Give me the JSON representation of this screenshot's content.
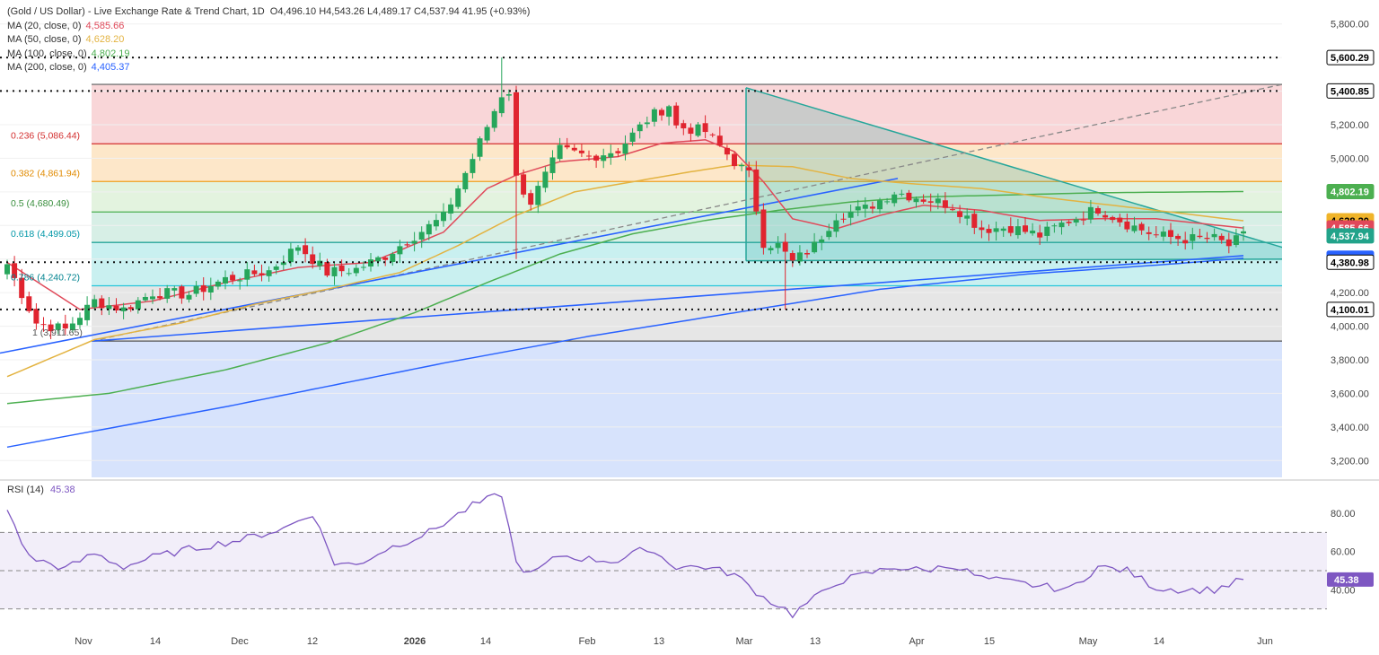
{
  "header": {
    "title": "(Gold / US Dollar) - Live Exchange Rate & Trend Chart, 1D",
    "ohlc": "O4,496.10 H4,543.26 L4,489.17 C4,537.94 41.95 (+0.93%)"
  },
  "ma_legend": [
    {
      "label": "MA (20, close, 0)",
      "value": "4,585.66",
      "color": "#e04a5a"
    },
    {
      "label": "MA (50, close, 0)",
      "value": "4,628.20",
      "color": "#e3b341"
    },
    {
      "label": "MA (100, close, 0)",
      "value": "4,802.19",
      "color": "#4caf50"
    },
    {
      "label": "MA (200, close, 0)",
      "value": "4,405.37",
      "color": "#2962ff"
    }
  ],
  "fib_labels": [
    {
      "text": "0.236 (5,086.44)",
      "price": 5086.44,
      "color": "#d32f2f"
    },
    {
      "text": "0.382 (4,861.94)",
      "price": 4861.94,
      "color": "#e08a00"
    },
    {
      "text": "0.5 (4,680.49)",
      "price": 4680.49,
      "color": "#388e3c"
    },
    {
      "text": "0.618 (4,499.05)",
      "price": 4499.05,
      "color": "#0097a7"
    },
    {
      "text": "0.786 (4,240.72)",
      "price": 4240.72,
      "color": "#00838f"
    },
    {
      "text": "1 (3,911.65)",
      "price": 3911.65,
      "color": "#555555"
    }
  ],
  "price_axis": {
    "ticks": [
      "5,800.00",
      "5,400.00",
      "5,200.00",
      "5,000.00",
      "4,200.00",
      "4,000.00",
      "3,800.00",
      "3,600.00",
      "3,400.00",
      "3,200.00"
    ],
    "badges": [
      {
        "text": "5,600.29",
        "price": 5600.29,
        "bg": "#ffffff",
        "fg": "#000000",
        "border": "#000000"
      },
      {
        "text": "5,400.85",
        "price": 5400.85,
        "bg": "#ffffff",
        "fg": "#000000",
        "border": "#000000"
      },
      {
        "text": "4,802.19",
        "price": 4802.19,
        "bg": "#4caf50",
        "fg": "#ffffff",
        "border": "#4caf50"
      },
      {
        "text": "4,628.20",
        "price": 4628.2,
        "bg": "#f0b429",
        "fg": "#000000",
        "border": "#f0b429"
      },
      {
        "text": "4,585.66",
        "price": 4585.66,
        "bg": "#e0485a",
        "fg": "#ffffff",
        "border": "#e0485a"
      },
      {
        "text": "4,537.94",
        "price": 4537.94,
        "bg": "#22a38a",
        "fg": "#ffffff",
        "border": "#22a38a"
      },
      {
        "text": "4,405.37",
        "price": 4405.37,
        "bg": "#2962ff",
        "fg": "#ffffff",
        "border": "#2962ff"
      },
      {
        "text": "4,380.98",
        "price": 4380.98,
        "bg": "#ffffff",
        "fg": "#000000",
        "border": "#000000"
      },
      {
        "text": "4,100.01",
        "price": 4100.01,
        "bg": "#ffffff",
        "fg": "#000000",
        "border": "#000000"
      }
    ]
  },
  "time_axis": [
    "Nov",
    "14",
    "Dec",
    "12",
    "2026",
    "14",
    "Feb",
    "13",
    "Mar",
    "13",
    "Apr",
    "15",
    "May",
    "14",
    "Jun"
  ],
  "rsi": {
    "label": "RSI (14)",
    "value": "45.38",
    "ticks": [
      "80.00",
      "60.00",
      "40.00"
    ],
    "levels": [
      70,
      50,
      30
    ]
  },
  "chart_data": {
    "type": "candlestick",
    "title": "(Gold / US Dollar) - Live Exchange Rate & Trend Chart, 1D",
    "price_range": [
      3100,
      5900
    ],
    "horizontal_levels": [
      5600.29,
      5400.85,
      4380.98,
      4100.01
    ],
    "ma_values": {
      "ma20": 4585.66,
      "ma50": 4628.2,
      "ma100": 4802.19,
      "ma200": 4405.37
    },
    "close_anchors": [
      [
        0,
        4370
      ],
      [
        4,
        4020
      ],
      [
        8,
        3980
      ],
      [
        12,
        4150
      ],
      [
        16,
        4100
      ],
      [
        20,
        4200
      ],
      [
        25,
        4190
      ],
      [
        30,
        4280
      ],
      [
        36,
        4330
      ],
      [
        40,
        4480
      ],
      [
        44,
        4320
      ],
      [
        48,
        4340
      ],
      [
        52,
        4420
      ],
      [
        56,
        4540
      ],
      [
        60,
        4650
      ],
      [
        64,
        5000
      ],
      [
        68,
        5380
      ],
      [
        69,
        5400
      ],
      [
        70,
        4880
      ],
      [
        72,
        4740
      ],
      [
        76,
        5050
      ],
      [
        80,
        5010
      ],
      [
        84,
        5050
      ],
      [
        88,
        5230
      ],
      [
        91,
        5320
      ],
      [
        92,
        5190
      ],
      [
        96,
        5160
      ],
      [
        100,
        4980
      ],
      [
        102,
        4900
      ],
      [
        104,
        4500
      ],
      [
        106,
        4480
      ],
      [
        108,
        4380
      ],
      [
        111,
        4480
      ],
      [
        114,
        4660
      ],
      [
        118,
        4700
      ],
      [
        122,
        4800
      ],
      [
        126,
        4760
      ],
      [
        130,
        4720
      ],
      [
        134,
        4580
      ],
      [
        138,
        4590
      ],
      [
        142,
        4540
      ],
      [
        146,
        4630
      ],
      [
        150,
        4700
      ],
      [
        154,
        4610
      ],
      [
        158,
        4540
      ],
      [
        162,
        4520
      ],
      [
        166,
        4520
      ],
      [
        168,
        4480
      ],
      [
        170,
        4538
      ]
    ],
    "rsi_anchors": [
      [
        0,
        82
      ],
      [
        3,
        57
      ],
      [
        8,
        51
      ],
      [
        12,
        59
      ],
      [
        16,
        52
      ],
      [
        20,
        57
      ],
      [
        26,
        62
      ],
      [
        32,
        66
      ],
      [
        38,
        72
      ],
      [
        42,
        80
      ],
      [
        45,
        54
      ],
      [
        48,
        53
      ],
      [
        52,
        61
      ],
      [
        58,
        70
      ],
      [
        64,
        84
      ],
      [
        68,
        90
      ],
      [
        70,
        54
      ],
      [
        72,
        48
      ],
      [
        76,
        58
      ],
      [
        80,
        56
      ],
      [
        84,
        55
      ],
      [
        88,
        62
      ],
      [
        92,
        52
      ],
      [
        96,
        52
      ],
      [
        100,
        48
      ],
      [
        104,
        36
      ],
      [
        107,
        30
      ],
      [
        108,
        27
      ],
      [
        110,
        33
      ],
      [
        112,
        38
      ],
      [
        114,
        44
      ],
      [
        118,
        48
      ],
      [
        122,
        52
      ],
      [
        126,
        50
      ],
      [
        130,
        53
      ],
      [
        134,
        46
      ],
      [
        138,
        44
      ],
      [
        142,
        42
      ],
      [
        146,
        40
      ],
      [
        150,
        52
      ],
      [
        154,
        50
      ],
      [
        158,
        41
      ],
      [
        162,
        40
      ],
      [
        166,
        40
      ],
      [
        170,
        45.38
      ]
    ]
  }
}
